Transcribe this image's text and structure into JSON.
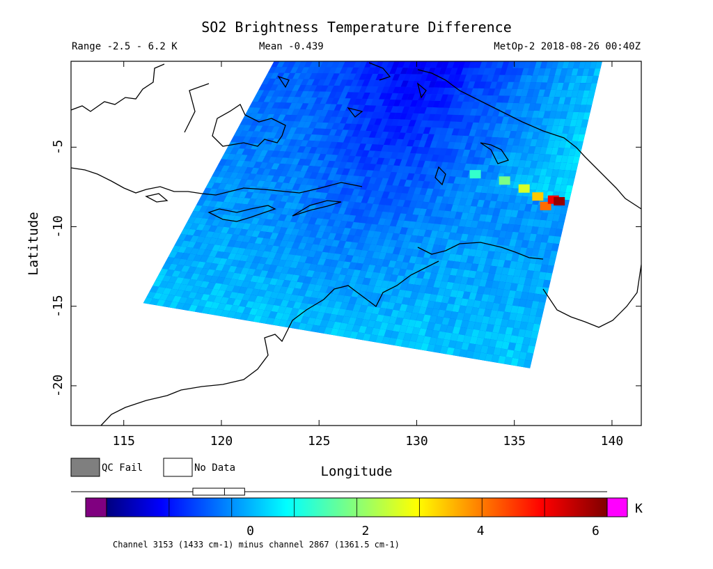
{
  "chart_data": {
    "type": "heatmap",
    "title": "SO2 Brightness Temperature Difference",
    "header_left": "Range -2.5 - 6.2 K",
    "header_mid": "Mean -0.439",
    "header_right": "MetOp-2 2018-08-26 00:40Z",
    "xlabel": "Longitude",
    "ylabel": "Latitude",
    "xlim": [
      112.3,
      141.5
    ],
    "ylim": [
      -22.5,
      0.4
    ],
    "x_ticks": [
      115,
      120,
      125,
      130,
      135,
      140
    ],
    "x_tick_labels": [
      "115",
      "120",
      "125",
      "130",
      "135",
      "140"
    ],
    "y_ticks": [
      -5,
      -10,
      -15,
      -20
    ],
    "y_tick_labels": [
      "-5",
      "-10",
      "-15",
      "-20"
    ],
    "swath_corners_lonlat": [
      [
        122.7,
        0.4
      ],
      [
        139.5,
        0.4
      ],
      [
        135.8,
        -18.9
      ],
      [
        116.0,
        -14.8
      ]
    ],
    "hotspot": {
      "lon": 137.3,
      "lat": -8.4,
      "value": 6.0
    },
    "legend": {
      "qc_fail_label": "QC Fail",
      "no_data_label": "No Data",
      "qc_fail_color": "#7f7f7f",
      "no_data_color": "#ffffff"
    },
    "colorbar": {
      "range": [
        -2.5,
        6.2
      ],
      "ticks": [
        0,
        2,
        4,
        6
      ],
      "tick_labels": [
        "0",
        "2",
        "4",
        "6"
      ],
      "unit": "K",
      "underflow_color": "#800080",
      "overflow_color": "#ff00ff",
      "box_range": [
        -1.0,
        -0.1
      ],
      "box_median": -0.45,
      "caption": "Channel 3153 (1433 cm-1) minus channel 2867 (1361.5 cm-1)"
    }
  }
}
